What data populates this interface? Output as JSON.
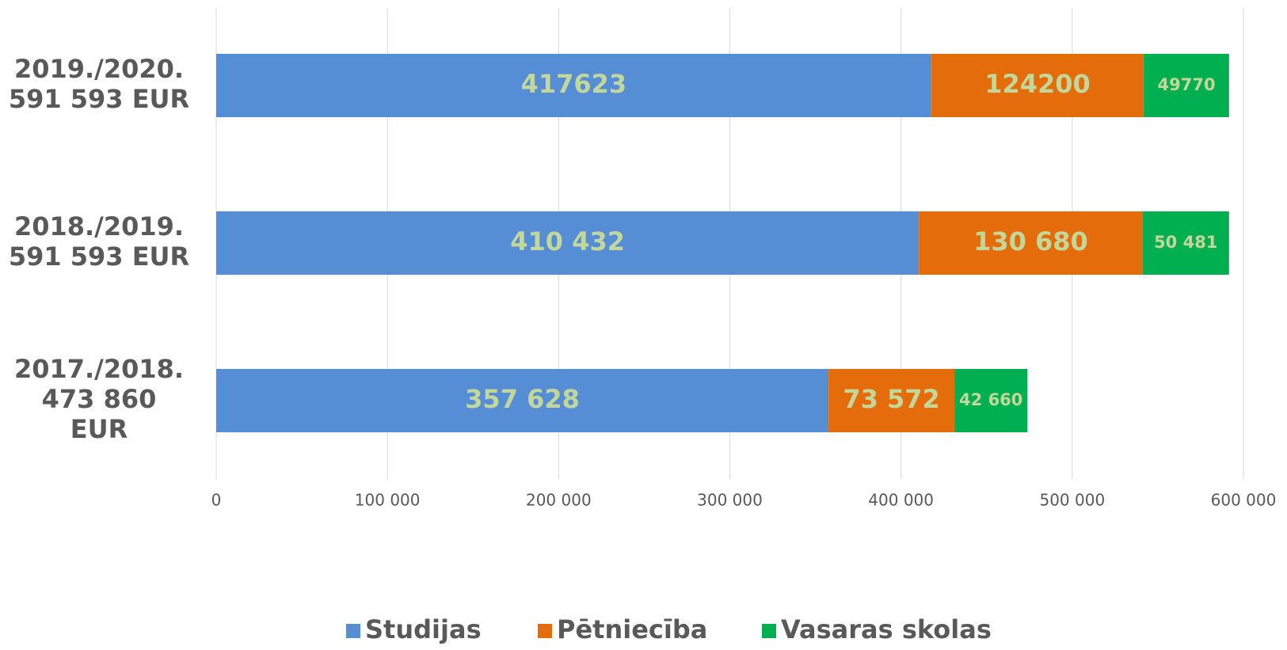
{
  "chart_data": {
    "type": "stacked_barh",
    "categories": [
      [
        "2019./2020.",
        "591 593 EUR"
      ],
      [
        "2018./2019.",
        "591 593 EUR"
      ],
      [
        "2017./2018.",
        "473 860",
        "EUR"
      ]
    ],
    "series": [
      {
        "name": "Studijas",
        "color": "#558ed5",
        "values": [
          417623,
          410432,
          357628
        ],
        "value_labels": [
          "417623",
          "410 432",
          "357 628"
        ]
      },
      {
        "name": "Pētniecība",
        "color": "#e46c0a",
        "values": [
          124200,
          130680,
          73572
        ],
        "value_labels": [
          "124200",
          "130 680",
          "73 572"
        ]
      },
      {
        "name": "Vasaras skolas",
        "color": "#00b050",
        "values": [
          49770,
          50481,
          42660
        ],
        "value_labels": [
          "49770",
          "50 481",
          "42 660"
        ]
      }
    ],
    "xlim": [
      0,
      600000
    ],
    "xticks": [
      0,
      {
        "value": 100000,
        "label": "100 000"
      },
      {
        "value": 200000,
        "label": "200 000"
      },
      {
        "value": 300000,
        "label": "300 000"
      },
      {
        "value": 400000,
        "label": "400 000"
      },
      {
        "value": 500000,
        "label": "500 000"
      },
      {
        "value": 600000,
        "label": "600 000"
      }
    ],
    "grid": true,
    "legend": "bottom",
    "label_color": "#c4d79b"
  }
}
